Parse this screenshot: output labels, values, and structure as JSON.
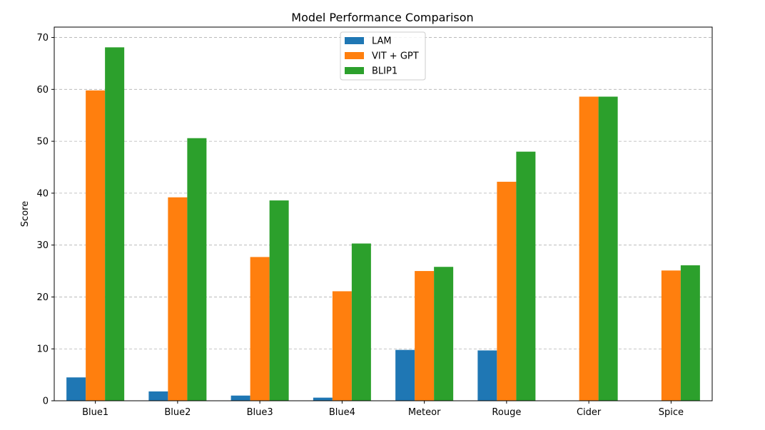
{
  "chart_data": {
    "type": "bar",
    "title": "Model Performance Comparison",
    "xlabel": "",
    "ylabel": "Score",
    "categories": [
      "Blue1",
      "Blue2",
      "Blue3",
      "Blue4",
      "Meteor",
      "Rouge",
      "Cider",
      "Spice"
    ],
    "series": [
      {
        "name": "LAM",
        "color": "#1f77b4",
        "values": [
          4.5,
          1.8,
          1.0,
          0.6,
          9.8,
          9.7,
          0,
          0
        ]
      },
      {
        "name": "VIT + GPT",
        "color": "#ff7f0e",
        "values": [
          59.8,
          39.2,
          27.7,
          21.1,
          25.0,
          42.2,
          58.6,
          25.1
        ]
      },
      {
        "name": "BLIP1",
        "color": "#2ca02c",
        "values": [
          68.1,
          50.6,
          38.6,
          30.3,
          25.8,
          48.0,
          58.6,
          26.1
        ]
      }
    ],
    "ylim": [
      0,
      72
    ],
    "yticks": [
      0,
      10,
      20,
      30,
      40,
      50,
      60,
      70
    ],
    "grid": "y-dashed",
    "legend_position": "top-center"
  }
}
